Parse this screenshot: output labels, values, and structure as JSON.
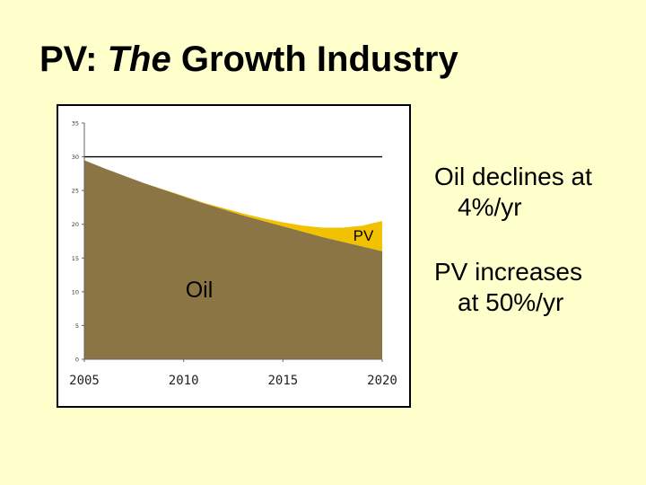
{
  "slide": {
    "title_prefix": "PV: ",
    "title_italic": "The",
    "title_suffix": " Growth Industry",
    "bullets": [
      {
        "line1": "Oil declines at",
        "line2": "4%/yr"
      },
      {
        "line1": "PV increases",
        "line2": "at 50%/yr"
      }
    ]
  },
  "chart_data": {
    "type": "area",
    "stacked": true,
    "x_ticks": [
      2005,
      2010,
      2015,
      2020
    ],
    "y_ticks": [
      0,
      5,
      10,
      15,
      20,
      25,
      30,
      35
    ],
    "xlim": [
      2005,
      2020
    ],
    "ylim": [
      0,
      35
    ],
    "series": [
      {
        "name": "Oil",
        "color": "#8b7545",
        "x": [
          2005,
          2006,
          2007,
          2008,
          2009,
          2010,
          2011,
          2012,
          2013,
          2014,
          2015,
          2016,
          2017,
          2018,
          2019,
          2020
        ],
        "values": [
          29.5,
          28.3,
          27.2,
          26.1,
          25.1,
          24.1,
          23.1,
          22.2,
          21.3,
          20.5,
          19.7,
          18.9,
          18.1,
          17.4,
          16.7,
          16.0
        ]
      },
      {
        "name": "PV",
        "color": "#f2c200",
        "x": [
          2005,
          2006,
          2007,
          2008,
          2009,
          2010,
          2011,
          2012,
          2013,
          2014,
          2015,
          2016,
          2017,
          2018,
          2019,
          2020
        ],
        "values": [
          0.0,
          0.0,
          0.0,
          0.0,
          0.05,
          0.1,
          0.1,
          0.2,
          0.3,
          0.4,
          0.6,
          0.9,
          1.4,
          2.1,
          3.1,
          4.5
        ]
      }
    ],
    "series_labels": [
      "PV",
      "Oil"
    ],
    "reference_line_y": 30,
    "grid": false
  }
}
